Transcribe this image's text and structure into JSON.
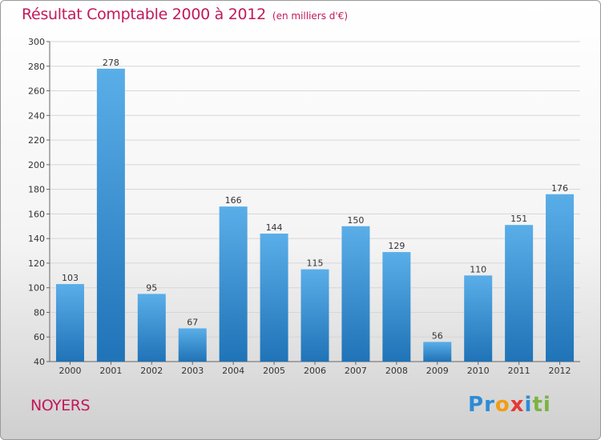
{
  "chart_data": {
    "type": "bar",
    "title": "Résultat Comptable 2000 à 2012",
    "subtitle": "(en milliers d'€)",
    "categories": [
      "2000",
      "2001",
      "2002",
      "2003",
      "2004",
      "2005",
      "2006",
      "2007",
      "2008",
      "2009",
      "2010",
      "2011",
      "2012"
    ],
    "values": [
      103,
      278,
      95,
      67,
      166,
      144,
      115,
      150,
      129,
      56,
      110,
      151,
      176
    ],
    "ylim": [
      40,
      300
    ],
    "yticks": [
      40,
      60,
      80,
      100,
      120,
      140,
      160,
      180,
      200,
      220,
      240,
      260,
      280,
      300
    ],
    "grid": true,
    "xlabel": "",
    "ylabel": ""
  },
  "footer": {
    "city": "NOYERS",
    "logo_letters": [
      "P",
      "r",
      "o",
      "x",
      "i",
      "t",
      "i"
    ]
  },
  "colors": {
    "title": "#c2185b",
    "bar_top": "#5aaee8",
    "bar_bottom": "#1f73b7",
    "logo": [
      "#2e8bd6",
      "#2e8bd6",
      "#f39c12",
      "#e53935",
      "#2e8bd6",
      "#7cb342",
      "#7cb342"
    ]
  }
}
